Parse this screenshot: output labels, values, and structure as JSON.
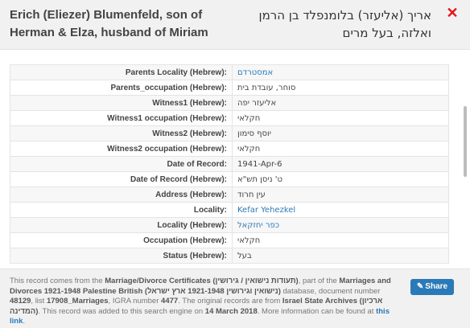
{
  "header": {
    "title_en": "Erich (Eliezer) Blumenfeld, son of Herman & Elza, husband of Miriam",
    "title_he": "אריך (אליעזר) בלומנפלד בן הרמן ואלזה, בעל מרים",
    "close_icon": "close-icon"
  },
  "rows": [
    {
      "label": "Parents Locality (Hebrew):",
      "value": "אמסטרדם",
      "link": true
    },
    {
      "label": "Parents_occupation (Hebrew):",
      "value": "סוחר, עובדת בית",
      "link": false
    },
    {
      "label": "Witness1 (Hebrew):",
      "value": "אליעזר יפה",
      "link": false
    },
    {
      "label": "Witness1 occupation (Hebrew):",
      "value": "חקלאי",
      "link": false
    },
    {
      "label": "Witness2 (Hebrew):",
      "value": "יוסף סימון",
      "link": false
    },
    {
      "label": "Witness2 occupation (Hebrew):",
      "value": "חקלאי",
      "link": false
    },
    {
      "label": "Date of Record:",
      "value": "1941-Apr-6",
      "link": false
    },
    {
      "label": "Date of Record (Hebrew):",
      "value": "ט' ניסן תש\"א",
      "link": false
    },
    {
      "label": "Address (Hebrew):",
      "value": "עין חרוד",
      "link": false
    },
    {
      "label": "Locality:",
      "value": "Kefar Yehezkel",
      "link": true
    },
    {
      "label": "Locality (Hebrew):",
      "value": "כפר יחזקאל",
      "link": true
    },
    {
      "label": "Occupation (Hebrew):",
      "value": "חקלאי",
      "link": false
    },
    {
      "label": "Status (Hebrew):",
      "value": "בעל",
      "link": false
    }
  ],
  "footer": {
    "t1": "This record comes from the ",
    "b1": "Marriage/Divorce Certificates (תעודות נישואין / גירושין)",
    "t2": ", part of the ",
    "b2": "Marriages and Divorces 1921-1948 Palestine British (נישואין וגירושין 1921-1948 ארץ ישראל)",
    "t3": " database, document number ",
    "b3": "48129",
    "t4": ", list ",
    "b4": "17908_Marriages",
    "t5": ", IGRA number ",
    "b5": "4477",
    "t6": ". The original records are from ",
    "b6": "Israel State Archives (ארכיון המדינה)",
    "t7": ". This record was added to this search engine on ",
    "b7": "14 March 2018",
    "t8": ". More information can be found at ",
    "link": "this link",
    "t9": "."
  },
  "share": {
    "label": "Share",
    "icon": "share-icon"
  }
}
